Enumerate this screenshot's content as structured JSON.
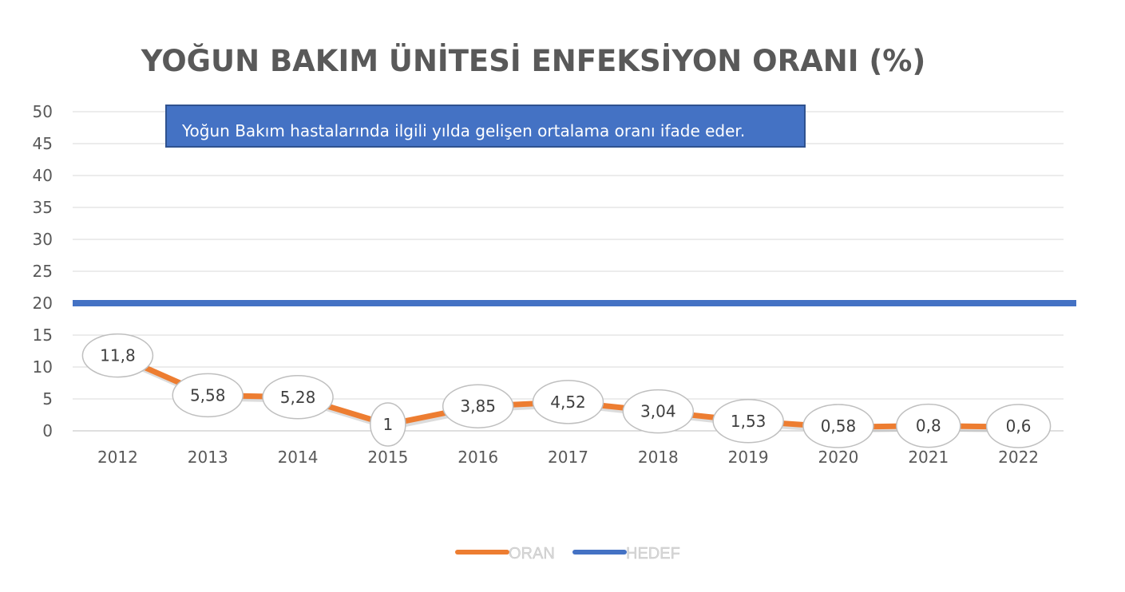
{
  "chart_data": {
    "type": "line",
    "title": "YOĞUN BAKIM ÜNİTESİ ENFEKSİYON ORANI (%)",
    "xlabel": "",
    "ylabel": "",
    "ylim": [
      0,
      50
    ],
    "ytick_step": 5,
    "categories": [
      "2012",
      "2013",
      "2014",
      "2015",
      "2016",
      "2017",
      "2018",
      "2019",
      "2020",
      "2021",
      "2022"
    ],
    "series": [
      {
        "name": "ORAN",
        "color": "#ED7D31",
        "values": [
          11.8,
          5.58,
          5.28,
          1,
          3.85,
          4.52,
          3.04,
          1.53,
          0.58,
          0.8,
          0.6
        ],
        "data_labels": [
          "11,8",
          "5,58",
          "5,28",
          "1",
          "3,85",
          "4,52",
          "3,04",
          "1,53",
          "0,58",
          "0,8",
          "0,6"
        ]
      },
      {
        "name": "HEDEF",
        "color": "#4472C4",
        "values": [
          20,
          20,
          20,
          20,
          20,
          20,
          20,
          20,
          20,
          20,
          20
        ]
      }
    ],
    "grid": true,
    "legend_position": "bottom-center",
    "annotation": "Yoğun Bakım hastalarında ilgili yılda gelişen ortalama oranı ifade eder."
  }
}
